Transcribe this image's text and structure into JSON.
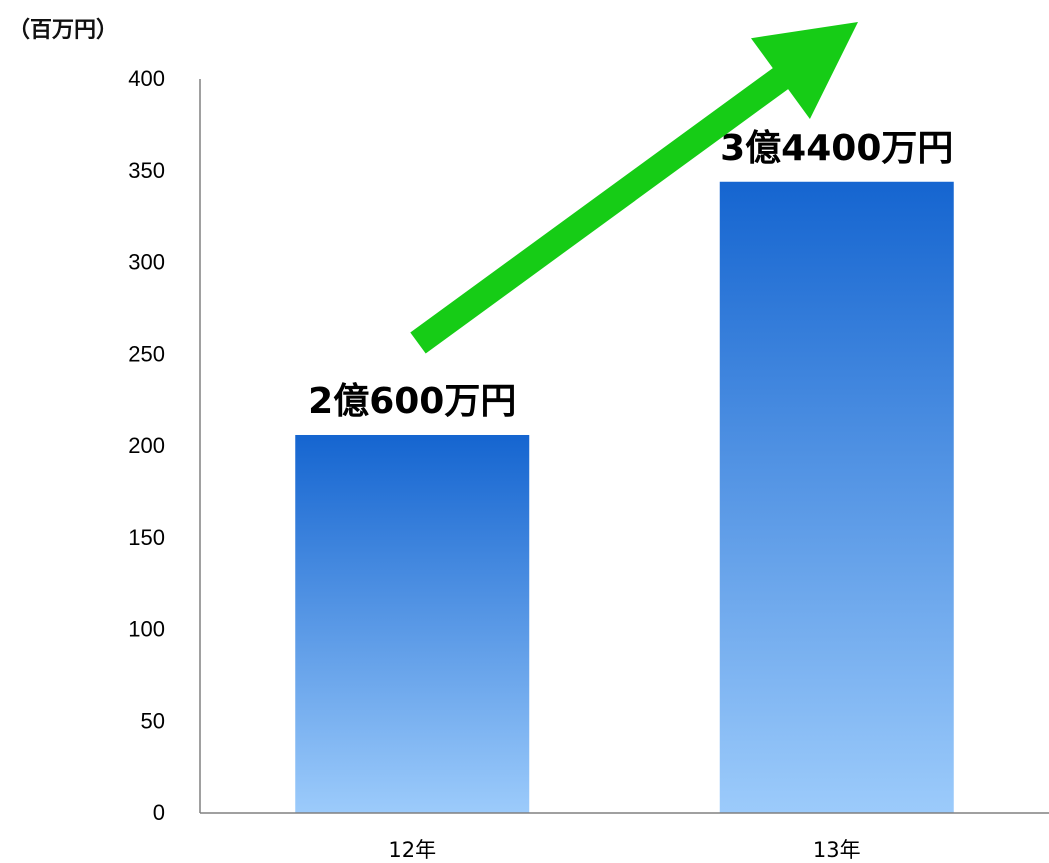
{
  "chart_data": {
    "type": "bar",
    "unit_label": "（百万円）",
    "categories": [
      "12年",
      "13年"
    ],
    "values": [
      206,
      344
    ],
    "data_labels": [
      "2億600万円",
      "3億4400万円"
    ],
    "yticks": [
      "0",
      "50",
      "100",
      "150",
      "200",
      "250",
      "300",
      "350",
      "400"
    ],
    "ylim": [
      0,
      400
    ],
    "grid": false,
    "legend": "none",
    "annotation": "green-arrow-up-right",
    "colors": {
      "bar_top": "#1565d0",
      "bar_bottom": "#9ccbfb",
      "arrow": "#16cc16",
      "axis": "#808080",
      "text": "#000000"
    }
  }
}
